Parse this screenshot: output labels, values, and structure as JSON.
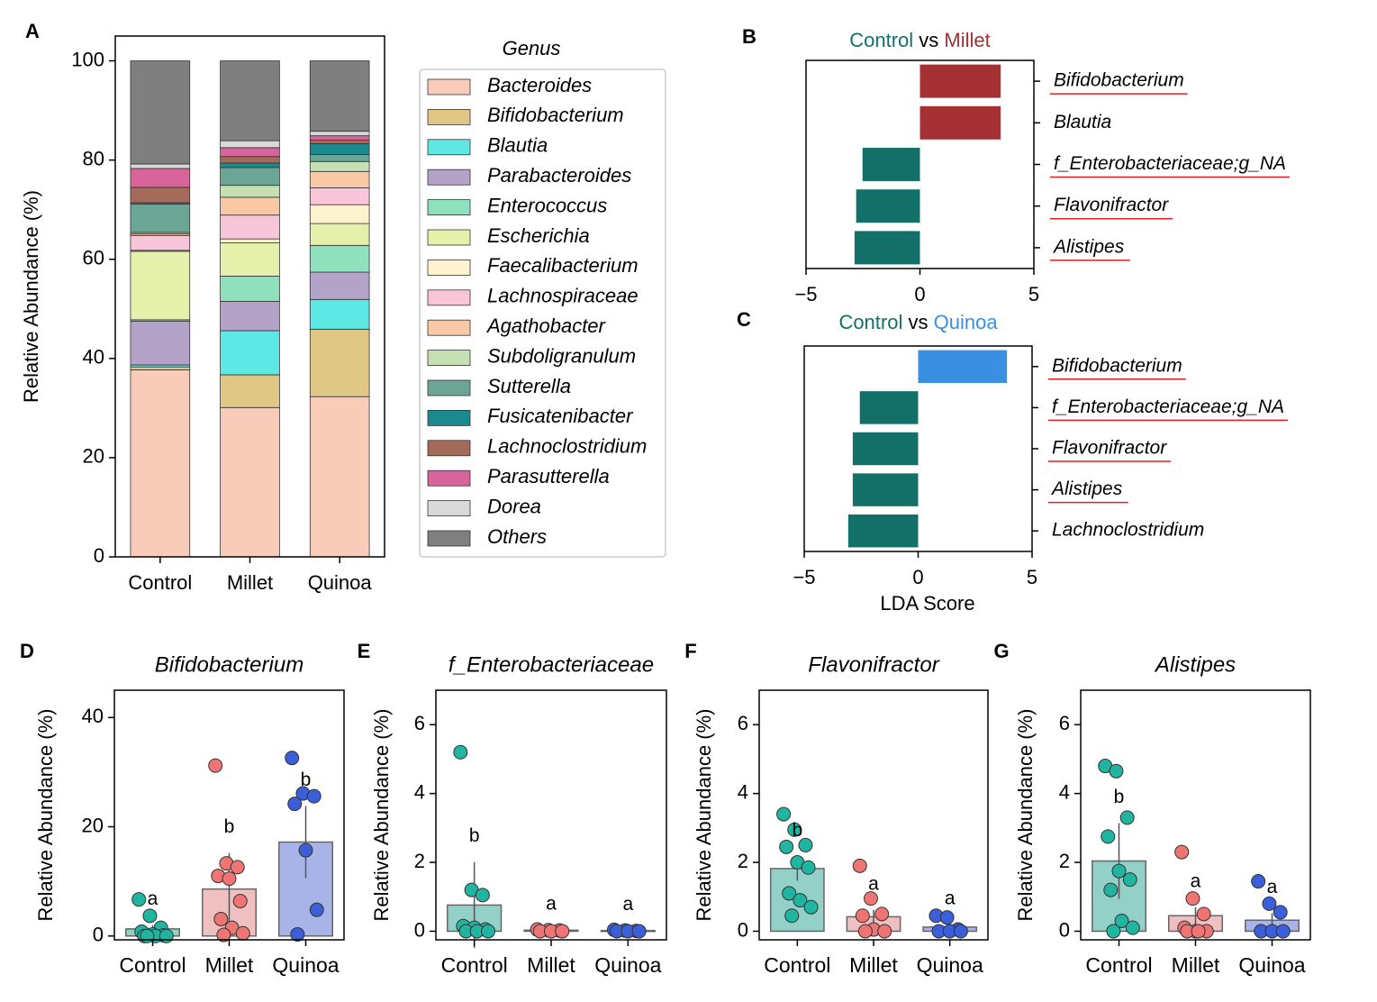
{
  "chart_data": [
    {
      "panel": "A",
      "type": "stacked_bar",
      "categories": [
        "Control",
        "Millet",
        "Quinoa"
      ],
      "ylabel": "Relative Abundance (%)",
      "ylim": [
        0,
        105
      ],
      "yticks": [
        0,
        20,
        40,
        60,
        80,
        100
      ],
      "legend_title": "Genus",
      "legend": "right",
      "series": [
        {
          "name": "Bacteroides",
          "color": "#f9cbb9",
          "values": [
            37.7,
            30.1,
            32.3
          ]
        },
        {
          "name": "Bifidobacterium",
          "color": "#e0c785",
          "values": [
            0.6,
            6.6,
            13.6
          ]
        },
        {
          "name": "Blautia",
          "color": "#5de8e4",
          "values": [
            0.4,
            8.9,
            6.0
          ]
        },
        {
          "name": "Parabacteroides",
          "color": "#b3a3c8",
          "values": [
            8.8,
            5.9,
            5.5
          ]
        },
        {
          "name": "Enterococcus",
          "color": "#8fe0bd",
          "values": [
            0.3,
            5.1,
            5.4
          ]
        },
        {
          "name": "Escherichia",
          "color": "#e5f0ab",
          "values": [
            13.8,
            6.7,
            4.4
          ]
        },
        {
          "name": "Faecalibacterium",
          "color": "#fff3cf",
          "values": [
            0.2,
            0.8,
            3.8
          ]
        },
        {
          "name": "Lachnospiraceae",
          "color": "#f9c5d8",
          "values": [
            3.0,
            4.8,
            3.4
          ]
        },
        {
          "name": "Agathobacter",
          "color": "#f9c9a6",
          "values": [
            0.3,
            3.6,
            3.3
          ]
        },
        {
          "name": "Subdoligranulum",
          "color": "#c5e0b3",
          "values": [
            0.3,
            2.4,
            2.0
          ]
        },
        {
          "name": "Sutterella",
          "color": "#6aa595",
          "values": [
            5.7,
            3.6,
            1.4
          ]
        },
        {
          "name": "Fusicatenibacter",
          "color": "#1a8a8e",
          "values": [
            0.3,
            0.9,
            2.2
          ]
        },
        {
          "name": "Lachnoclostridium",
          "color": "#a56b5a",
          "values": [
            3.1,
            1.3,
            0.7
          ]
        },
        {
          "name": "Parasutterella",
          "color": "#d7649b",
          "values": [
            3.8,
            1.8,
            0.9
          ]
        },
        {
          "name": "Dorea",
          "color": "#d9d9d9",
          "values": [
            0.9,
            1.4,
            0.9
          ]
        },
        {
          "name": "Others",
          "color": "#7f7f7f",
          "values": [
            20.8,
            16.1,
            14.2
          ]
        }
      ]
    },
    {
      "panel": "B",
      "type": "hbar",
      "title_parts": [
        {
          "text": "Control",
          "color": "#137068"
        },
        {
          "text": "vs",
          "color": "#000000"
        },
        {
          "text": "Millet",
          "color": "#a33134"
        }
      ],
      "categories": [
        "Bifidobacterium",
        "Blautia",
        "f_Enterobacteriaceae;g_NA",
        "Flavonifractor",
        "Alistipes"
      ],
      "values": [
        3.54,
        3.54,
        -2.52,
        -2.8,
        -2.87
      ],
      "colors": [
        "#a33134",
        "#a33134",
        "#137068",
        "#137068",
        "#137068"
      ],
      "underline": [
        true,
        false,
        true,
        true,
        true
      ],
      "underline_color": "#e02020",
      "xlim": [
        -5,
        5
      ],
      "xticks": [
        {
          "value": -5,
          "label": "−5"
        },
        0,
        5
      ]
    },
    {
      "panel": "C",
      "type": "hbar",
      "title_parts": [
        {
          "text": "Control",
          "color": "#137068"
        },
        {
          "text": "vs",
          "color": "#000000"
        },
        {
          "text": "Quinoa",
          "color": "#3b8fe0"
        }
      ],
      "categories": [
        "Bifidobacterium",
        "f_Enterobacteriaceae;g_NA",
        "Flavonifractor",
        "Alistipes",
        "Lachnoclostridium"
      ],
      "values": [
        3.9,
        -2.56,
        -2.87,
        -2.87,
        -3.07
      ],
      "colors": [
        "#3b8fe0",
        "#137068",
        "#137068",
        "#137068",
        "#137068"
      ],
      "underline": [
        true,
        true,
        true,
        true,
        false
      ],
      "underline_color": "#e02020",
      "xlim": [
        -5,
        5
      ],
      "xticks": [
        {
          "value": -5,
          "label": "−5"
        },
        0,
        5
      ],
      "xlabel": "LDA Score"
    },
    {
      "panel": "D",
      "type": "bar_points",
      "title": "Bifidobacterium",
      "ylabel": "Relative Abundance (%)",
      "categories": [
        "Control",
        "Millet",
        "Quinoa"
      ],
      "values": [
        1.3,
        8.6,
        17.2
      ],
      "errors": [
        0.7,
        6.6,
        6.6
      ],
      "points": [
        [
          6.7,
          3.7,
          1.5,
          0.8,
          0.3,
          0.1,
          0,
          0,
          0,
          0
        ],
        [
          31.2,
          13.3,
          12.6,
          11.0,
          10.5,
          6.4,
          3.1,
          1.5,
          0.5,
          0.2
        ],
        [
          32.6,
          26.1,
          25.6,
          24.2,
          15.7,
          4.8,
          0.3
        ]
      ],
      "letters": [
        "a",
        "b",
        "b"
      ],
      "bar_colors": [
        "#92d0c8",
        "#f0c0c0",
        "#a8b4e8"
      ],
      "point_colors": [
        "#1fb5a0",
        "#ef7474",
        "#3a5fd9"
      ],
      "ylim": [
        -0.7,
        45
      ],
      "yticks": [
        0,
        20,
        40
      ]
    },
    {
      "panel": "E",
      "type": "bar_points",
      "title": "f_Enterobacteriaceae",
      "ylabel": "Relative Abundance (%)",
      "categories": [
        "Control",
        "Millet",
        "Quinoa"
      ],
      "values": [
        0.76,
        0.03,
        0.02
      ],
      "errors": [
        1.25,
        0.01,
        0.01
      ],
      "points": [
        [
          5.2,
          1.2,
          1.05,
          0.15,
          0.1,
          0.05,
          0,
          0,
          0
        ],
        [
          0.05,
          0.03,
          0.02,
          0,
          0,
          0
        ],
        [
          0.04,
          0.02,
          0.01,
          0,
          0,
          0
        ]
      ],
      "letters": [
        "b",
        "a",
        "a"
      ],
      "bar_colors": [
        "#92d0c8",
        "#f0c0c0",
        "#a8b4e8"
      ],
      "point_colors": [
        "#1fb5a0",
        "#ef7474",
        "#3a5fd9"
      ],
      "ylim": [
        -0.25,
        7
      ],
      "yticks": [
        0,
        2,
        4,
        6
      ]
    },
    {
      "panel": "F",
      "type": "bar_points",
      "title": "Flavonifractor",
      "ylabel": "Relative Abundance (%)",
      "categories": [
        "Control",
        "Millet",
        "Quinoa"
      ],
      "values": [
        1.82,
        0.42,
        0.12
      ],
      "errors": [
        0.35,
        0.2,
        0.08
      ],
      "points": [
        [
          3.4,
          2.95,
          2.5,
          2.45,
          2.0,
          1.85,
          1.1,
          0.9,
          0.7,
          0.45
        ],
        [
          1.9,
          0.95,
          0.5,
          0.45,
          0.05,
          0,
          0
        ],
        [
          0.45,
          0.4,
          0.05,
          0,
          0,
          0
        ]
      ],
      "letters": [
        "b",
        "a",
        "a"
      ],
      "bar_colors": [
        "#92d0c8",
        "#f0c0c0",
        "#a8b4e8"
      ],
      "point_colors": [
        "#1fb5a0",
        "#ef7474",
        "#3a5fd9"
      ],
      "ylim": [
        -0.25,
        7
      ],
      "yticks": [
        0,
        2,
        4,
        6
      ]
    },
    {
      "panel": "G",
      "type": "bar_points",
      "title": "Alistipes",
      "ylabel": "Relative Abundance (%)",
      "categories": [
        "Control",
        "Millet",
        "Quinoa"
      ],
      "values": [
        2.04,
        0.45,
        0.32
      ],
      "errors": [
        1.1,
        0.25,
        0.2
      ],
      "points": [
        [
          4.8,
          4.65,
          3.3,
          2.75,
          1.75,
          1.5,
          1.2,
          0.3,
          0.1,
          0
        ],
        [
          2.3,
          0.95,
          0.5,
          0.1,
          0,
          0,
          0,
          0
        ],
        [
          1.45,
          0.8,
          0.55,
          0,
          0,
          0
        ]
      ],
      "letters": [
        "b",
        "a",
        "a"
      ],
      "bar_colors": [
        "#92d0c8",
        "#f0c0c0",
        "#a8b4e8"
      ],
      "point_colors": [
        "#1fb5a0",
        "#ef7474",
        "#3a5fd9"
      ],
      "ylim": [
        -0.25,
        7
      ],
      "yticks": [
        0,
        2,
        4,
        6
      ]
    }
  ]
}
